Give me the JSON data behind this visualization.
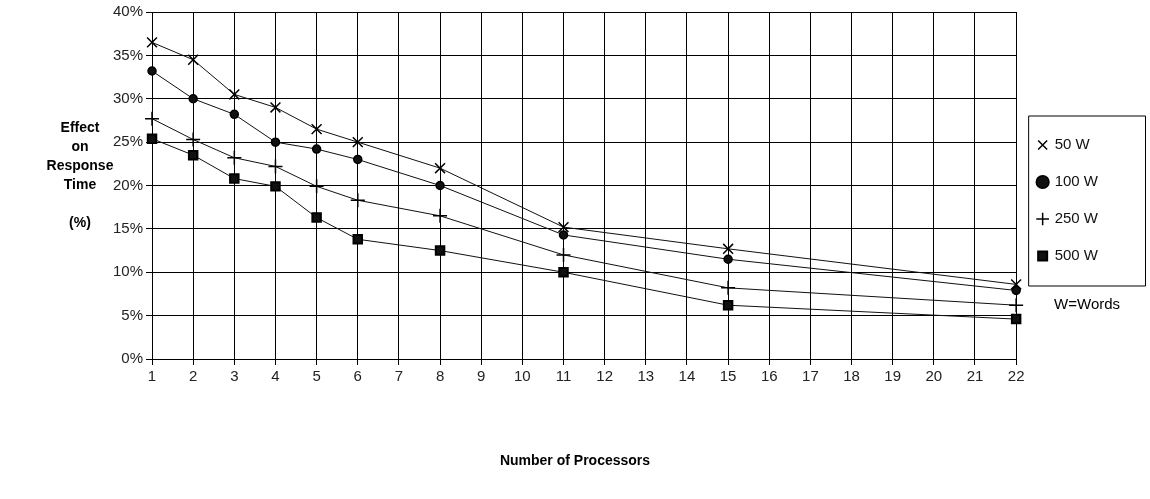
{
  "chart_data": {
    "type": "line",
    "xlabel": "Number of Processors",
    "ylabel": "Effect\non\nResponse\nTime\n\n(%)",
    "x": [
      1,
      2,
      3,
      4,
      5,
      6,
      8,
      11,
      15,
      22
    ],
    "series": [
      {
        "name": "50 W",
        "color": "#111111",
        "marker": "x",
        "values": [
          36.5,
          34.5,
          30.5,
          29,
          26.5,
          25,
          22,
          15.2,
          12.7,
          8.6
        ]
      },
      {
        "name": "100 W",
        "color": "#111111",
        "marker": "circle",
        "values": [
          33.2,
          30,
          28.2,
          25,
          24.2,
          23,
          20,
          14.3,
          11.5,
          7.9
        ]
      },
      {
        "name": "250 W",
        "color": "#111111",
        "marker": "cross",
        "values": [
          27.7,
          25.3,
          23.2,
          22.2,
          19.9,
          18.3,
          16.5,
          12,
          8.2,
          6.2
        ]
      },
      {
        "name": "500 W",
        "color": "#111111",
        "marker": "square",
        "values": [
          25.4,
          23.5,
          20.8,
          19.9,
          16.3,
          13.8,
          12.5,
          10,
          6.2,
          4.6
        ]
      }
    ],
    "xlim": [
      1,
      22
    ],
    "xticks": [
      1,
      2,
      3,
      4,
      5,
      6,
      7,
      8,
      9,
      10,
      11,
      12,
      13,
      14,
      15,
      16,
      17,
      18,
      19,
      20,
      21,
      22
    ],
    "ylim": [
      0,
      40
    ],
    "yticks": [
      {
        "value": 0,
        "label": "0%"
      },
      {
        "value": 5,
        "label": "5%"
      },
      {
        "value": 10,
        "label": "10%"
      },
      {
        "value": 15,
        "label": "15%"
      },
      {
        "value": 20,
        "label": "20%"
      },
      {
        "value": 25,
        "label": "25%"
      },
      {
        "value": 30,
        "label": "30%"
      },
      {
        "value": 35,
        "label": "35%"
      },
      {
        "value": 40,
        "label": "40%"
      }
    ],
    "grid": true,
    "legend": "right",
    "annotations": [
      "W=Words"
    ],
    "line_style": "solid"
  }
}
